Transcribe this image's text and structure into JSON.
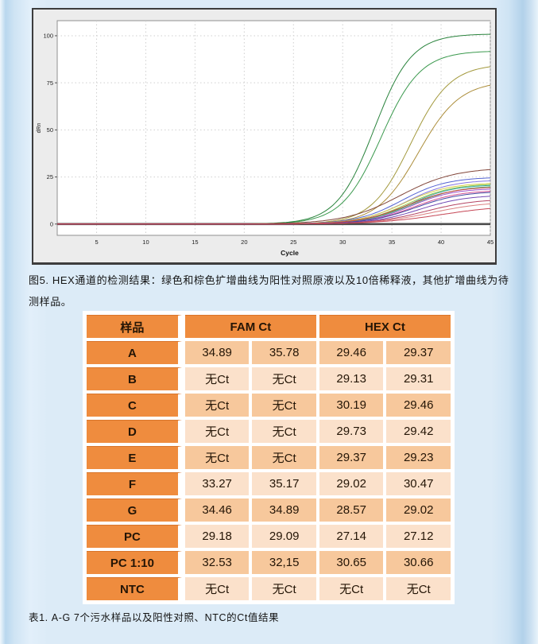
{
  "figure_caption": "图5. HEX通道的检测结果：绿色和棕色扩增曲线为阳性对照原液以及10倍稀释液，其他扩增曲线为待测样品。",
  "table_caption": "表1. A-G 7个污水样品以及阳性对照、NTC的Ct值结果",
  "colors": {
    "page_bg": "#dcebf7",
    "panel_bg": "#ececec",
    "panel_border": "#3d3d3d",
    "table_header_orange": "#ef8c3e",
    "row_dark_peach": "#f7c89c",
    "row_light_peach": "#fbe1cb",
    "grid_line": "#cfcfcf",
    "baseline": "#4d4d4d"
  },
  "chart_data": {
    "type": "line",
    "title": "",
    "xlabel": "Cycle",
    "ylabel": "dRn",
    "xlim": [
      1,
      45
    ],
    "ylim": [
      -6,
      108
    ],
    "xticks": [
      5,
      10,
      15,
      20,
      25,
      30,
      35,
      40,
      45
    ],
    "yticks": [
      0,
      25,
      50,
      75,
      100
    ],
    "grid": true,
    "legend": "none",
    "baseline_y": 0,
    "note": "sigmoid amplification curves; value(c)=plateau/(1+exp(-(c-mid)/k)); green pair = positive control, brown pair = PC 1:10 dilution, others = samples A-G (HEX Ct ~28.5-30.5, low plateaus)",
    "series": [
      {
        "name": "PC green 1",
        "color": "#1d7c31",
        "mid": 33.2,
        "k": 1.9,
        "plateau": 101
      },
      {
        "name": "PC green 2",
        "color": "#2f9443",
        "mid": 33.9,
        "k": 2.0,
        "plateau": 92
      },
      {
        "name": "PC 1:10 brown 1",
        "color": "#9e9433",
        "mid": 36.9,
        "k": 2.0,
        "plateau": 85
      },
      {
        "name": "PC 1:10 brown 2",
        "color": "#a8872f",
        "mid": 37.7,
        "k": 2.1,
        "plateau": 76
      },
      {
        "name": "sample",
        "color": "#7a3b2e",
        "mid": 35.8,
        "k": 2.8,
        "plateau": 30
      },
      {
        "name": "sample",
        "color": "#4a5bd0",
        "mid": 36.0,
        "k": 2.3,
        "plateau": 25
      },
      {
        "name": "sample",
        "color": "#7e6fe0",
        "mid": 36.4,
        "k": 2.3,
        "plateau": 23.5
      },
      {
        "name": "sample",
        "color": "#d6cf3e",
        "mid": 36.2,
        "k": 2.3,
        "plateau": 22
      },
      {
        "name": "sample",
        "color": "#8cc63f",
        "mid": 36.6,
        "k": 2.3,
        "plateau": 21.5
      },
      {
        "name": "sample",
        "color": "#2fa0a0",
        "mid": 36.8,
        "k": 2.2,
        "plateau": 21
      },
      {
        "name": "sample",
        "color": "#46b46e",
        "mid": 37.0,
        "k": 2.4,
        "plateau": 20.5
      },
      {
        "name": "sample",
        "color": "#cc3a3a",
        "mid": 36.6,
        "k": 2.4,
        "plateau": 20
      },
      {
        "name": "sample",
        "color": "#9a49c8",
        "mid": 36.9,
        "k": 2.2,
        "plateau": 19
      },
      {
        "name": "sample",
        "color": "#d44b8c",
        "mid": 37.2,
        "k": 2.3,
        "plateau": 18
      },
      {
        "name": "sample",
        "color": "#3a3f9e",
        "mid": 37.4,
        "k": 2.4,
        "plateau": 17.5
      },
      {
        "name": "sample",
        "color": "#6a3fb0",
        "mid": 37.8,
        "k": 2.4,
        "plateau": 15.5
      },
      {
        "name": "sample",
        "color": "#b03a5a",
        "mid": 38.4,
        "k": 2.6,
        "plateau": 13.5
      },
      {
        "name": "sample",
        "color": "#d97a7a",
        "mid": 39.0,
        "k": 2.8,
        "plateau": 12
      },
      {
        "name": "sample",
        "color": "#c23c4c",
        "mid": 40.0,
        "k": 3.2,
        "plateau": 10
      }
    ]
  },
  "table": {
    "sample_header": "样品",
    "col_groups": [
      "FAM Ct",
      "HEX Ct"
    ],
    "rows": [
      {
        "sample": "A",
        "values": [
          "34.89",
          "35.78",
          "29.46",
          "29.37"
        ]
      },
      {
        "sample": "B",
        "values": [
          "无Ct",
          "无Ct",
          "29.13",
          "29.31"
        ]
      },
      {
        "sample": "C",
        "values": [
          "无Ct",
          "无Ct",
          "30.19",
          "29.46"
        ]
      },
      {
        "sample": "D",
        "values": [
          "无Ct",
          "无Ct",
          "29.73",
          "29.42"
        ]
      },
      {
        "sample": "E",
        "values": [
          "无Ct",
          "无Ct",
          "29.37",
          "29.23"
        ]
      },
      {
        "sample": "F",
        "values": [
          "33.27",
          "35.17",
          "29.02",
          "30.47"
        ]
      },
      {
        "sample": "G",
        "values": [
          "34.46",
          "34.89",
          "28.57",
          "29.02"
        ]
      },
      {
        "sample": "PC",
        "values": [
          "29.18",
          "29.09",
          "27.14",
          "27.12"
        ]
      },
      {
        "sample": "PC 1:10",
        "values": [
          "32.53",
          "32,15",
          "30.65",
          "30.66"
        ]
      },
      {
        "sample": "NTC",
        "values": [
          "无Ct",
          "无Ct",
          "无Ct",
          "无Ct"
        ]
      }
    ]
  }
}
